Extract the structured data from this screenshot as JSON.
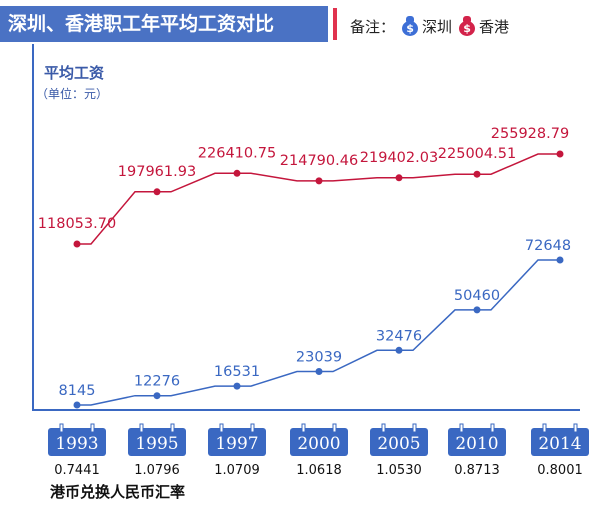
{
  "header": {
    "title": "深圳、香港职工年平均工资对比",
    "legend_prefix": "备注：",
    "legend_items": [
      {
        "label": "深圳",
        "icon": "money-bag-icon",
        "color": "#3d6fd6"
      },
      {
        "label": "香港",
        "icon": "money-bag-icon",
        "color": "#d3234a"
      }
    ]
  },
  "chart_data": {
    "type": "line",
    "title": "平均工资",
    "unit": "（单位：元）",
    "categories": [
      "1993",
      "1995",
      "1997",
      "2000",
      "2005",
      "2010",
      "2014"
    ],
    "series": [
      {
        "name": "香港",
        "color": "#c4163c",
        "values": [
          118053.7,
          197961.93,
          226410.75,
          214790.46,
          219402.03,
          225004.51,
          255928.79
        ],
        "labels": [
          "118053.70",
          "197961.93",
          "226410.75",
          "214790.46",
          "219402.03",
          "225004.51",
          "255928.79"
        ]
      },
      {
        "name": "深圳",
        "color": "#3a68c2",
        "values": [
          8145,
          12276,
          16531,
          23039,
          32476,
          50460,
          72648
        ],
        "labels": [
          "8145",
          "12276",
          "16531",
          "23039",
          "32476",
          "50460",
          "72648"
        ]
      }
    ],
    "exchange_rate_label": "港币兑换人民币汇率",
    "exchange_rates": [
      "0.7441",
      "1.0796",
      "1.0709",
      "1.0618",
      "1.0530",
      "0.8713",
      "0.8001"
    ]
  }
}
